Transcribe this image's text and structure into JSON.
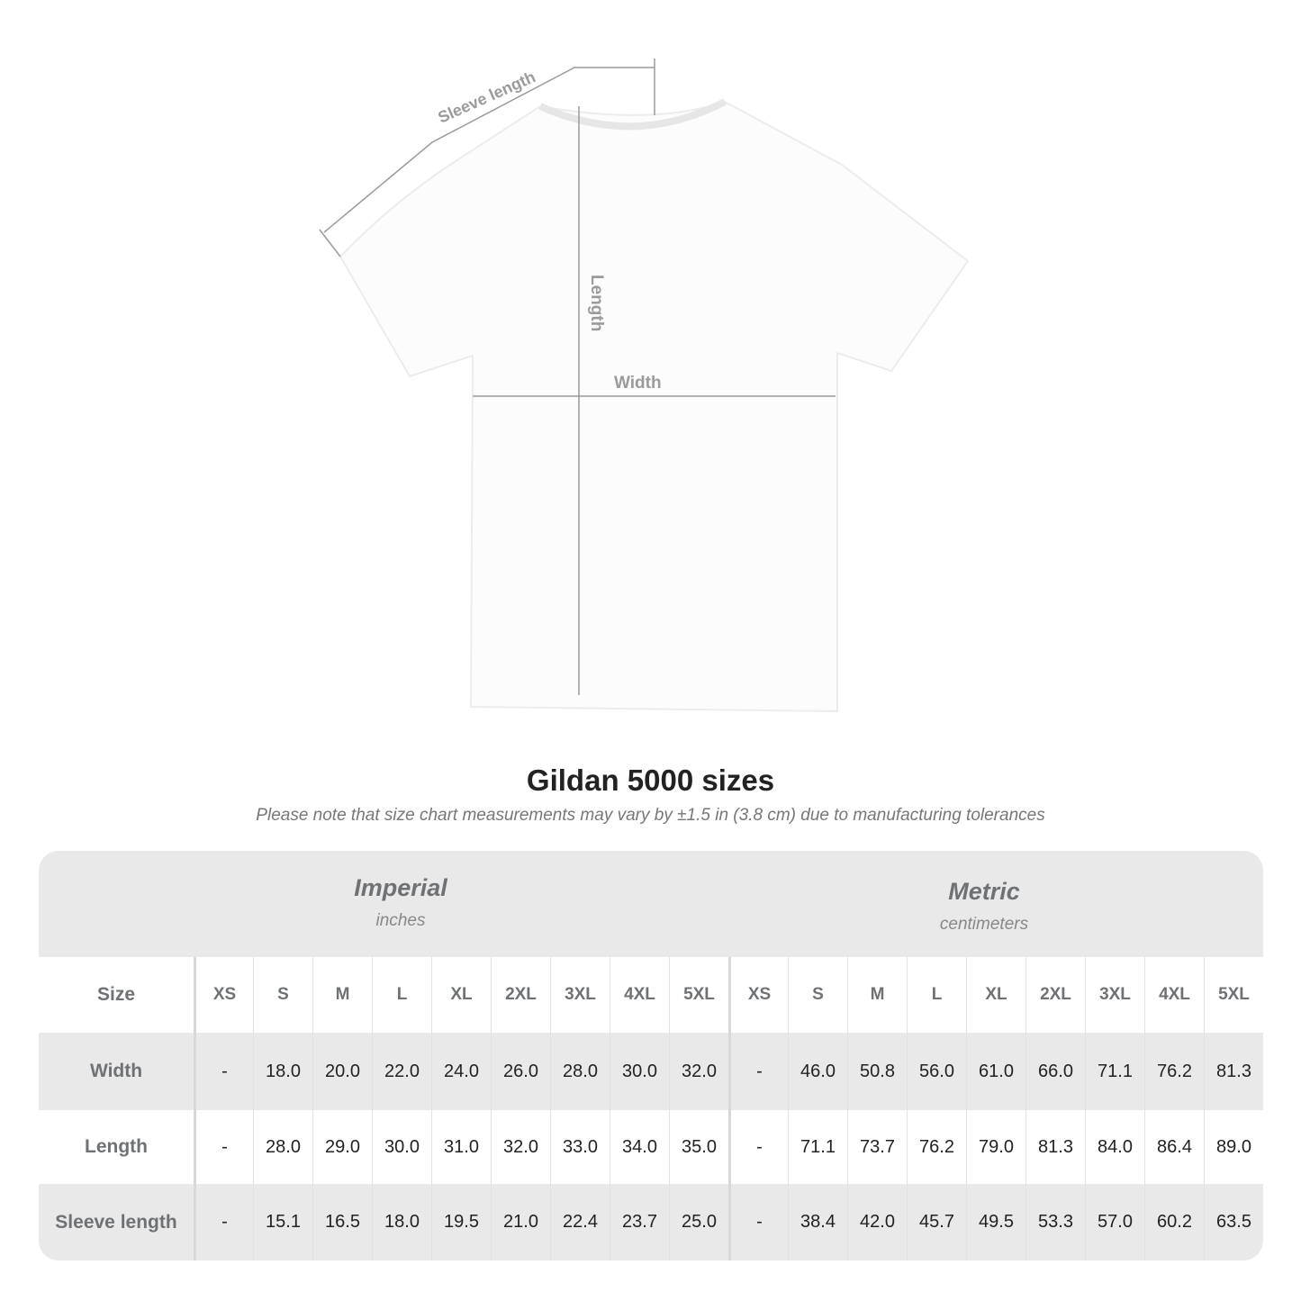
{
  "diagram": {
    "sleeve_label": "Sleeve length",
    "length_label": "Length",
    "width_label": "Width",
    "line_color": "#9a9a9a"
  },
  "title": "Gildan 5000 sizes",
  "note": "Please note that size chart measurements may vary by ±1.5 in (3.8 cm) due to manufacturing tolerances",
  "imperial": {
    "label": "Imperial",
    "unit": "inches"
  },
  "metric": {
    "label": "Metric",
    "unit": "centimeters"
  },
  "size_label": "Size",
  "sizes": [
    "XS",
    "S",
    "M",
    "L",
    "XL",
    "2XL",
    "3XL",
    "4XL",
    "5XL"
  ],
  "rows": [
    {
      "label": "Width",
      "imperial": [
        "-",
        "18.0",
        "20.0",
        "22.0",
        "24.0",
        "26.0",
        "28.0",
        "30.0",
        "32.0"
      ],
      "metric": [
        "-",
        "46.0",
        "50.8",
        "56.0",
        "61.0",
        "66.0",
        "71.1",
        "76.2",
        "81.3"
      ]
    },
    {
      "label": "Length",
      "imperial": [
        "-",
        "28.0",
        "29.0",
        "30.0",
        "31.0",
        "32.0",
        "33.0",
        "34.0",
        "35.0"
      ],
      "metric": [
        "-",
        "71.1",
        "73.7",
        "76.2",
        "79.0",
        "81.3",
        "84.0",
        "86.4",
        "89.0"
      ]
    },
    {
      "label": "Sleeve length",
      "imperial": [
        "-",
        "15.1",
        "16.5",
        "18.0",
        "19.5",
        "21.0",
        "22.4",
        "23.7",
        "25.0"
      ],
      "metric": [
        "-",
        "38.4",
        "42.0",
        "45.7",
        "49.5",
        "53.3",
        "57.0",
        "60.2",
        "63.5"
      ]
    }
  ]
}
